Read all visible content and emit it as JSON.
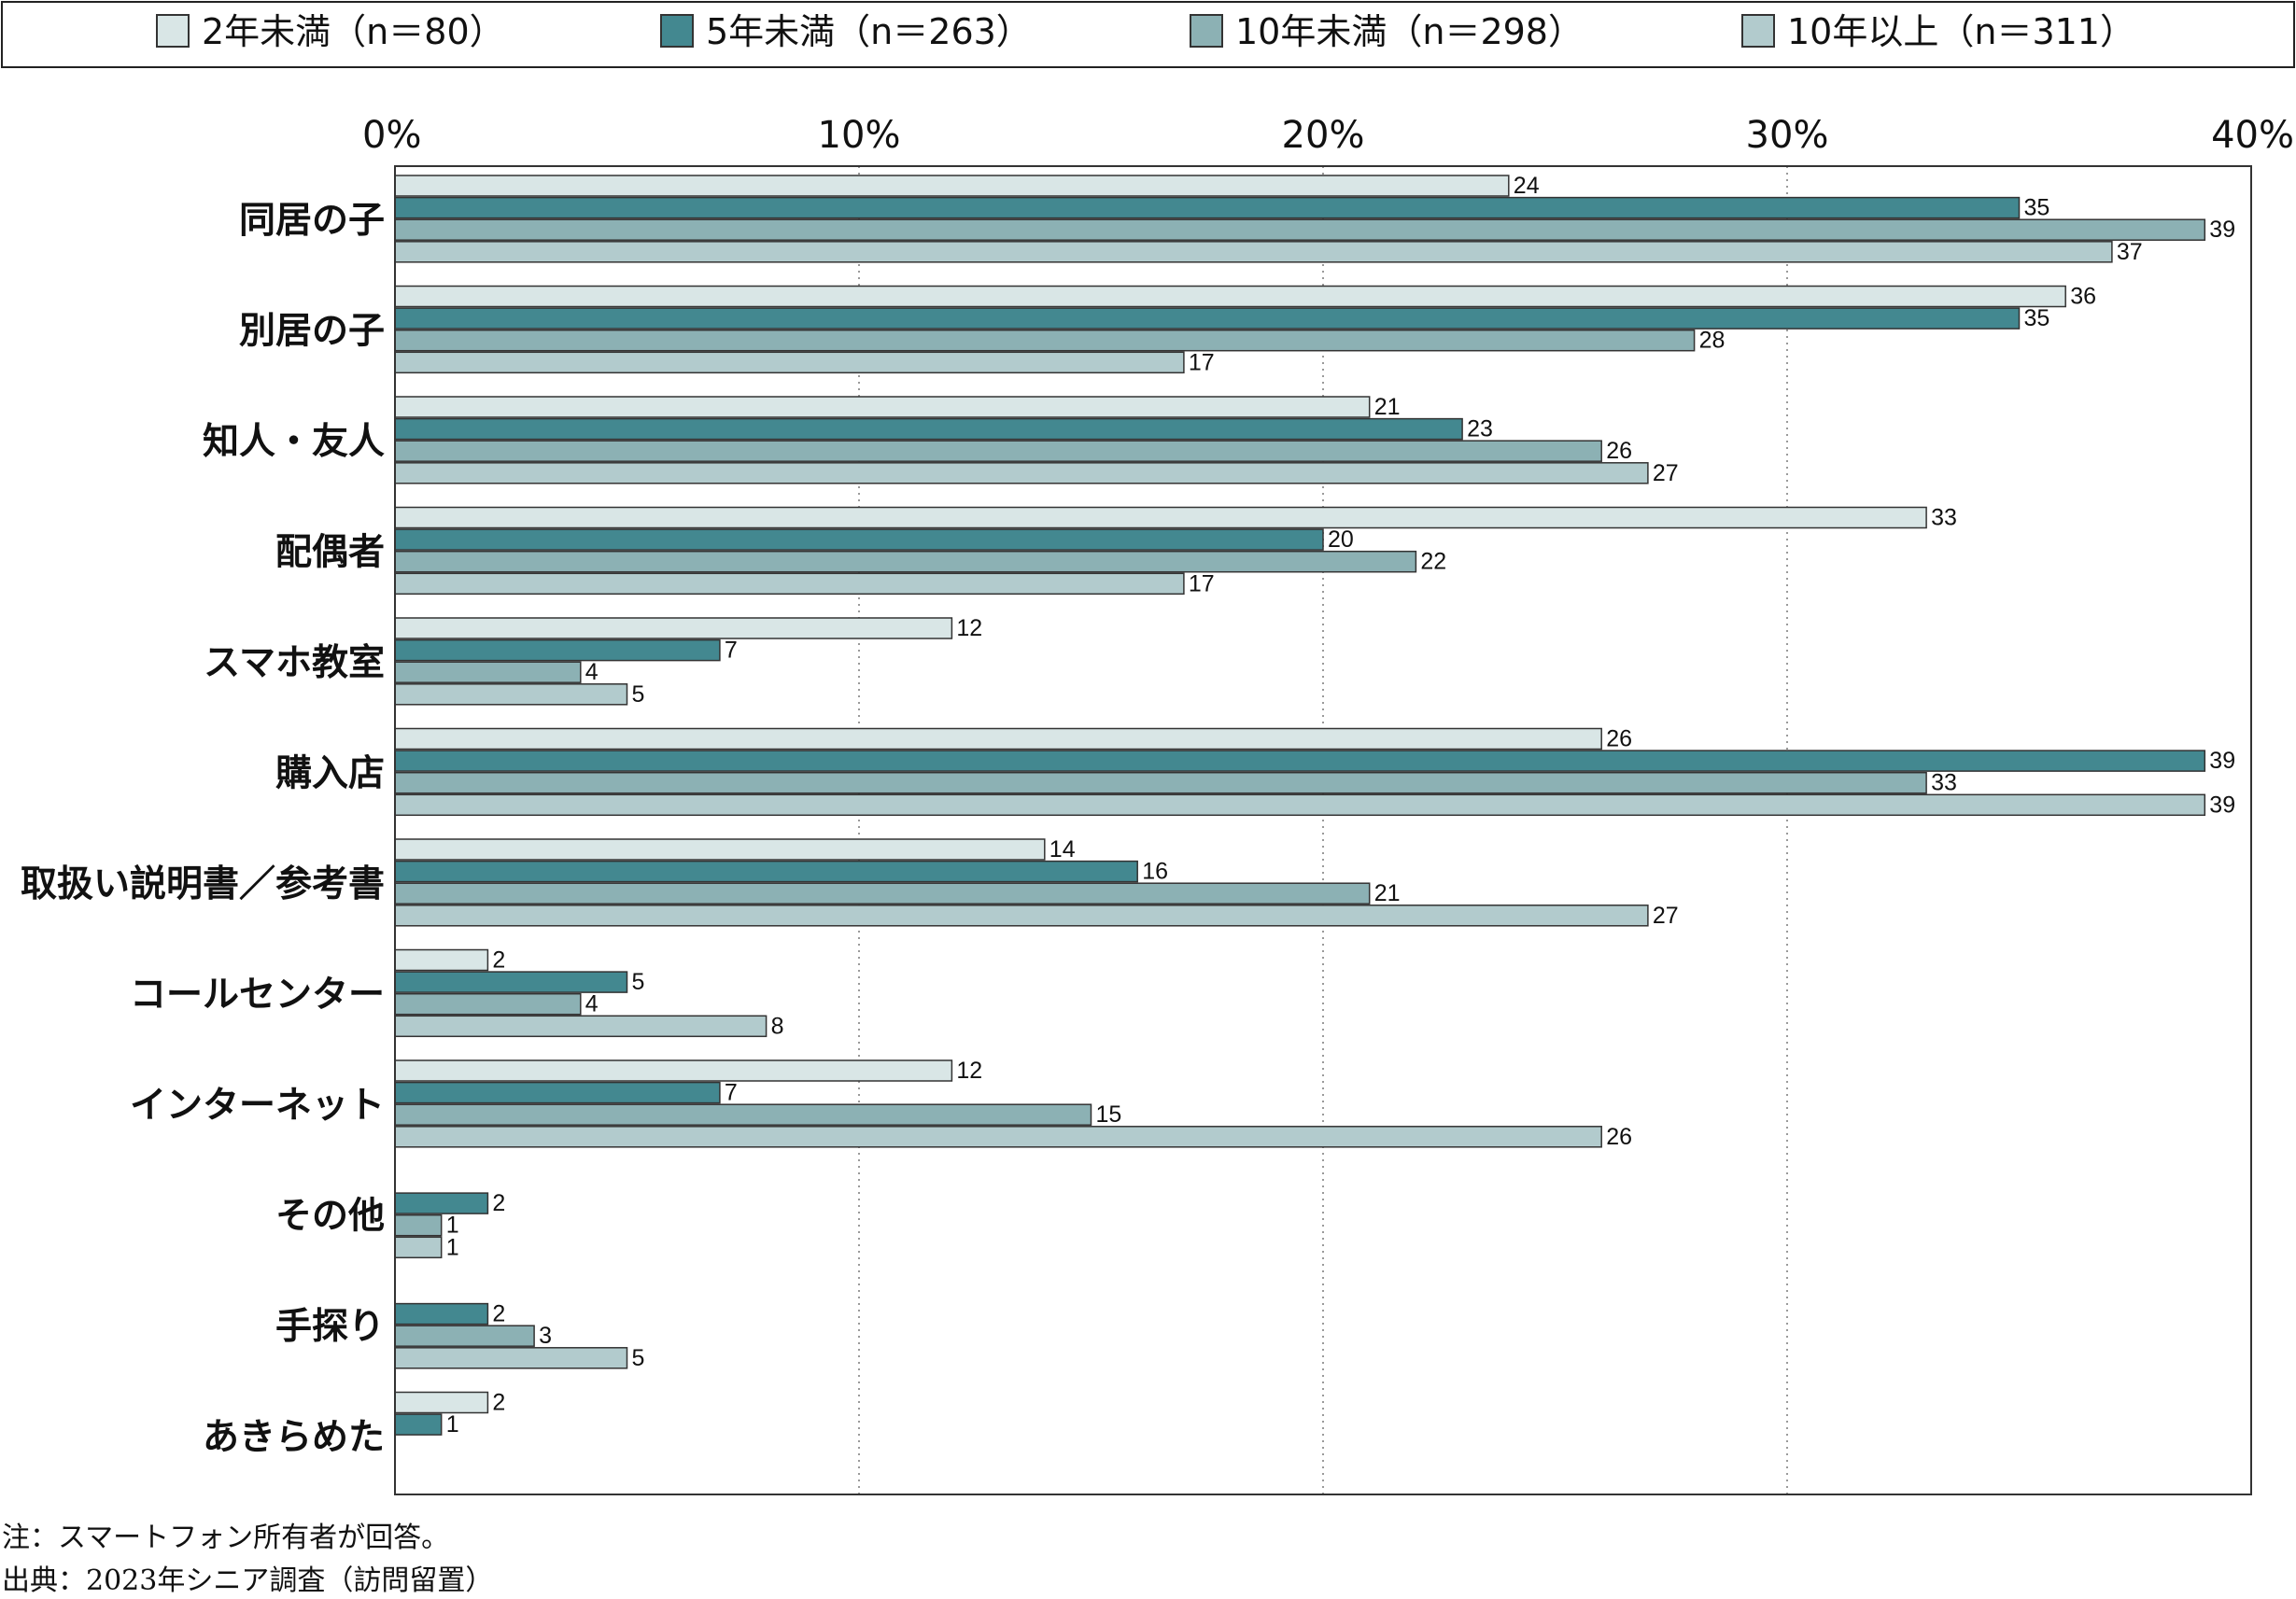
{
  "chart_data": {
    "type": "bar",
    "orientation": "horizontal",
    "categories": [
      "同居の子",
      "別居の子",
      "知人・友人",
      "配偶者",
      "スマホ教室",
      "購入店",
      "取扱い説明書／参考書",
      "コールセンター",
      "インターネット",
      "その他",
      "手探り",
      "あきらめた"
    ],
    "series": [
      {
        "name": "2年未満（n＝80）",
        "color": "#d9e6e6",
        "values": [
          24,
          36,
          21,
          33,
          12,
          26,
          14,
          2,
          12,
          null,
          null,
          2
        ]
      },
      {
        "name": "5年未満（n＝263）",
        "color": "#438890",
        "values": [
          35,
          35,
          23,
          20,
          7,
          39,
          16,
          5,
          7,
          2,
          2,
          1
        ]
      },
      {
        "name": "10年未満（n＝298）",
        "color": "#8cb1b4",
        "values": [
          39,
          28,
          26,
          22,
          4,
          33,
          21,
          4,
          15,
          1,
          3,
          null
        ]
      },
      {
        "name": "10年以上（n＝311）",
        "color": "#b2cbcd",
        "values": [
          37,
          17,
          27,
          17,
          5,
          39,
          27,
          8,
          26,
          1,
          5,
          null
        ]
      }
    ],
    "xlim": [
      0,
      40
    ],
    "xticks": [
      "0%",
      "10%",
      "20%",
      "30%",
      "40%"
    ],
    "grid": "vertical-dotted",
    "legend": "top"
  },
  "notes": {
    "note": "注：スマートフォン所有者が回答。",
    "source": "出典：2023年シニア調査（訪問留置）"
  }
}
